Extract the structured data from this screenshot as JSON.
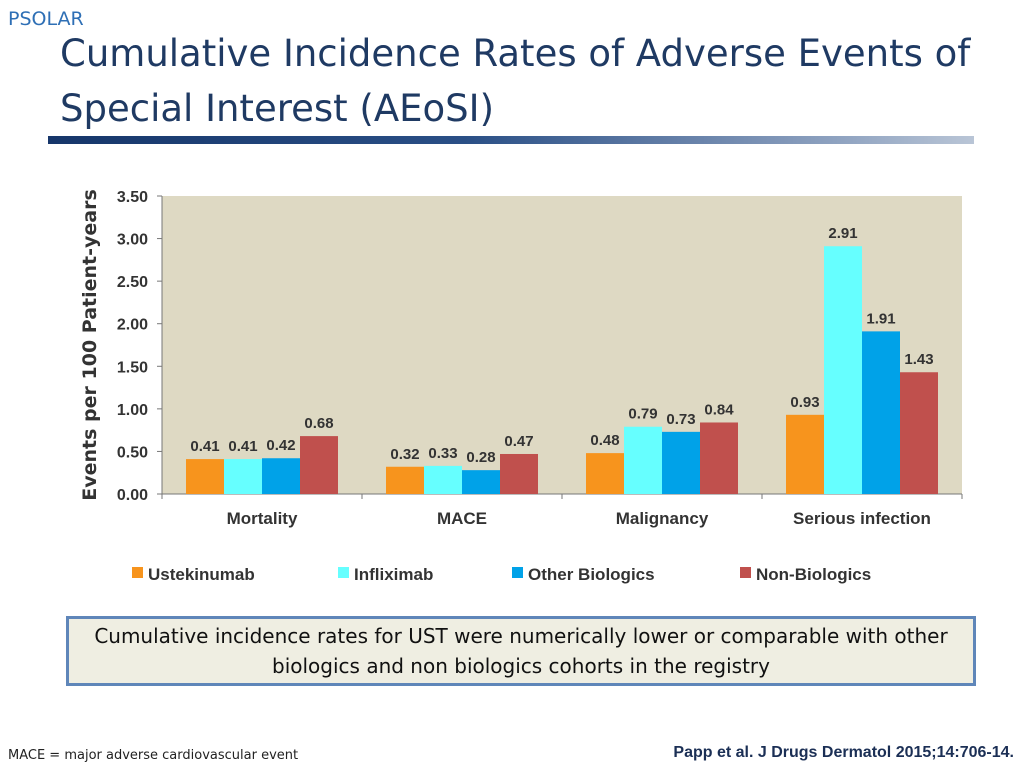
{
  "header": {
    "brand": "PSOLAR",
    "title": "Cumulative Incidence Rates of Adverse Events of Special Interest (AEoSI)"
  },
  "chart_data": {
    "type": "bar",
    "categories": [
      "Mortality",
      "MACE",
      "Malignancy",
      "Serious infection"
    ],
    "series": [
      {
        "name": "Ustekinumab",
        "color": "#f7941d",
        "values": [
          0.41,
          0.32,
          0.48,
          0.93
        ]
      },
      {
        "name": "Infliximab",
        "color": "#66ffff",
        "values": [
          0.41,
          0.33,
          0.79,
          2.91
        ]
      },
      {
        "name": "Other Biologics",
        "color": "#00a2e8",
        "values": [
          0.42,
          0.28,
          0.73,
          1.91
        ]
      },
      {
        "name": "Non-Biologics",
        "color": "#c0504d",
        "values": [
          0.68,
          0.47,
          0.84,
          1.43
        ]
      }
    ],
    "ylabel": "Events per 100 Patient-years",
    "ylim": [
      0,
      3.5
    ],
    "yticks": [
      "0.00",
      "0.50",
      "1.00",
      "1.50",
      "2.00",
      "2.50",
      "3.00",
      "3.50"
    ],
    "grid": false,
    "legend": "bottom",
    "plot_background": "#ded9c3"
  },
  "callout": {
    "text": "Cumulative incidence rates for UST were numerically lower or comparable with other biologics and non biologics cohorts in the registry"
  },
  "footer": {
    "footnote": "MACE = major adverse cardiovascular event",
    "citation": "Papp et al. J Drugs Dermatol 2015;14:706-14."
  }
}
